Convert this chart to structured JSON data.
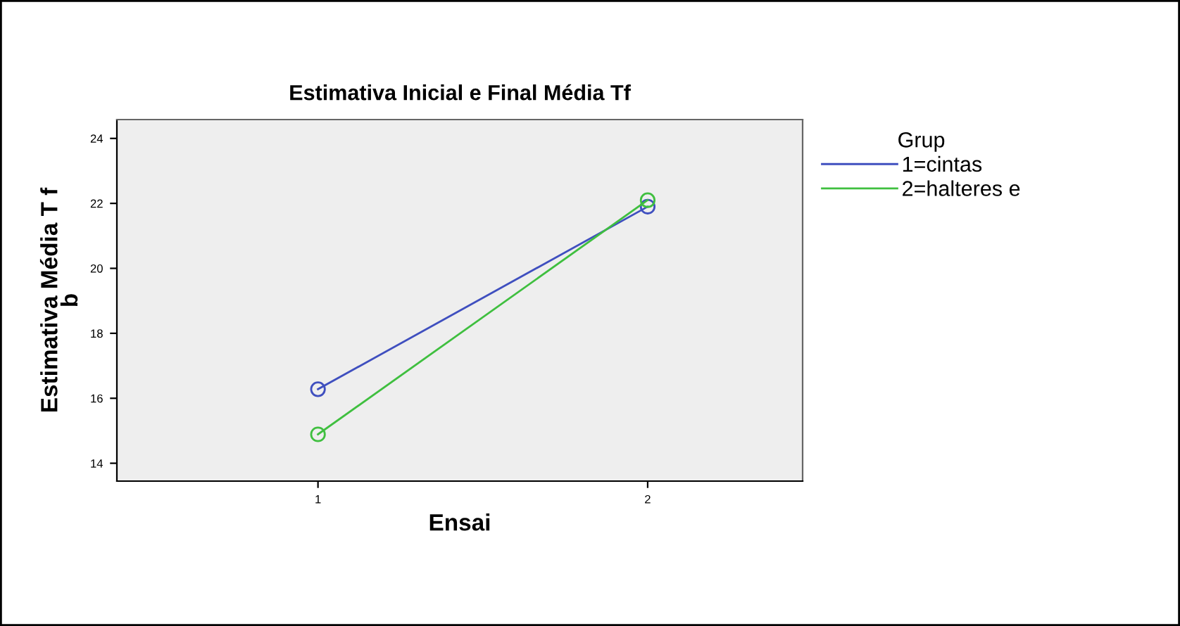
{
  "chart_data": {
    "type": "line",
    "title": "Estimativa Inicial e Final Média Tf",
    "xlabel": "Ensai",
    "ylabel": "Estimativa Média T f\nb",
    "legend_title": "Grup",
    "x": [
      1,
      2
    ],
    "series": [
      {
        "name": "1=cintas",
        "color": "#3f4fbf",
        "values": [
          16.28,
          21.9
        ]
      },
      {
        "name": "2=halteres e",
        "color": "#3fbf3f",
        "values": [
          14.89,
          22.1
        ]
      }
    ],
    "xlim": [
      0.39,
      2.47
    ],
    "xticks": [
      1,
      2
    ],
    "ylim": [
      13.45,
      24.58
    ],
    "yticks": [
      14,
      16,
      18,
      20,
      22,
      24
    ],
    "marker": "circle",
    "line_style": "solid",
    "legend": "right",
    "grid": false
  }
}
